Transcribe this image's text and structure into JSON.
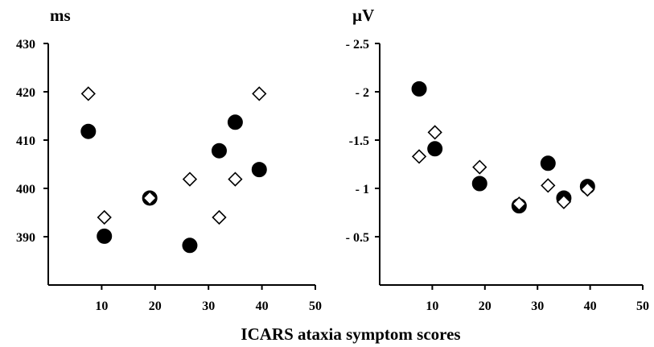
{
  "chart_data": [
    {
      "type": "scatter",
      "ylabel": "ms",
      "xlim": [
        0,
        50
      ],
      "ylim": [
        380,
        430
      ],
      "x_ticks": [
        10,
        20,
        30,
        40,
        50
      ],
      "y_ticks": [
        "390",
        "400",
        "410",
        "420",
        "430"
      ],
      "y_tick_values": [
        390,
        400,
        410,
        420,
        430
      ],
      "grid": false,
      "series": [
        {
          "marker": "filled-circle",
          "color": "#000000",
          "points": [
            [
              7.5,
              411.8
            ],
            [
              10.5,
              390.1
            ],
            [
              19,
              398
            ],
            [
              26.5,
              388.2
            ],
            [
              32,
              407.8
            ],
            [
              35,
              413.7
            ],
            [
              39.5,
              403.9
            ]
          ]
        },
        {
          "marker": "open-diamond",
          "color": "#ffffff",
          "points": [
            [
              7.5,
              419.6
            ],
            [
              10.5,
              394
            ],
            [
              19,
              398
            ],
            [
              26.5,
              401.9
            ],
            [
              32,
              394
            ],
            [
              35,
              401.9
            ],
            [
              39.5,
              419.6
            ]
          ]
        }
      ]
    },
    {
      "type": "scatter",
      "ylabel": "µV",
      "xlim": [
        0,
        50
      ],
      "ylim": [
        0,
        -2.5
      ],
      "x_ticks": [
        10,
        20,
        30,
        40,
        50
      ],
      "y_ticks": [
        "- 0.5",
        "- 1",
        "-1.5",
        "- 2",
        "- 2.5"
      ],
      "y_tick_values": [
        -0.5,
        -1,
        -1.5,
        -2,
        -2.5
      ],
      "grid": false,
      "series": [
        {
          "marker": "filled-circle",
          "color": "#000000",
          "points": [
            [
              7.5,
              -2.03
            ],
            [
              10.5,
              -1.41
            ],
            [
              19,
              -1.05
            ],
            [
              26.5,
              -0.82
            ],
            [
              32,
              -1.26
            ],
            [
              35,
              -0.9
            ],
            [
              39.5,
              -1.02
            ]
          ]
        },
        {
          "marker": "open-diamond",
          "color": "#ffffff",
          "points": [
            [
              7.5,
              -1.33
            ],
            [
              10.5,
              -1.58
            ],
            [
              19,
              -1.22
            ],
            [
              26.5,
              -0.84
            ],
            [
              32,
              -1.03
            ],
            [
              35,
              -0.86
            ],
            [
              39.5,
              -0.99
            ]
          ]
        }
      ]
    }
  ],
  "shared_xlabel": "ICARS ataxia symptom scores"
}
